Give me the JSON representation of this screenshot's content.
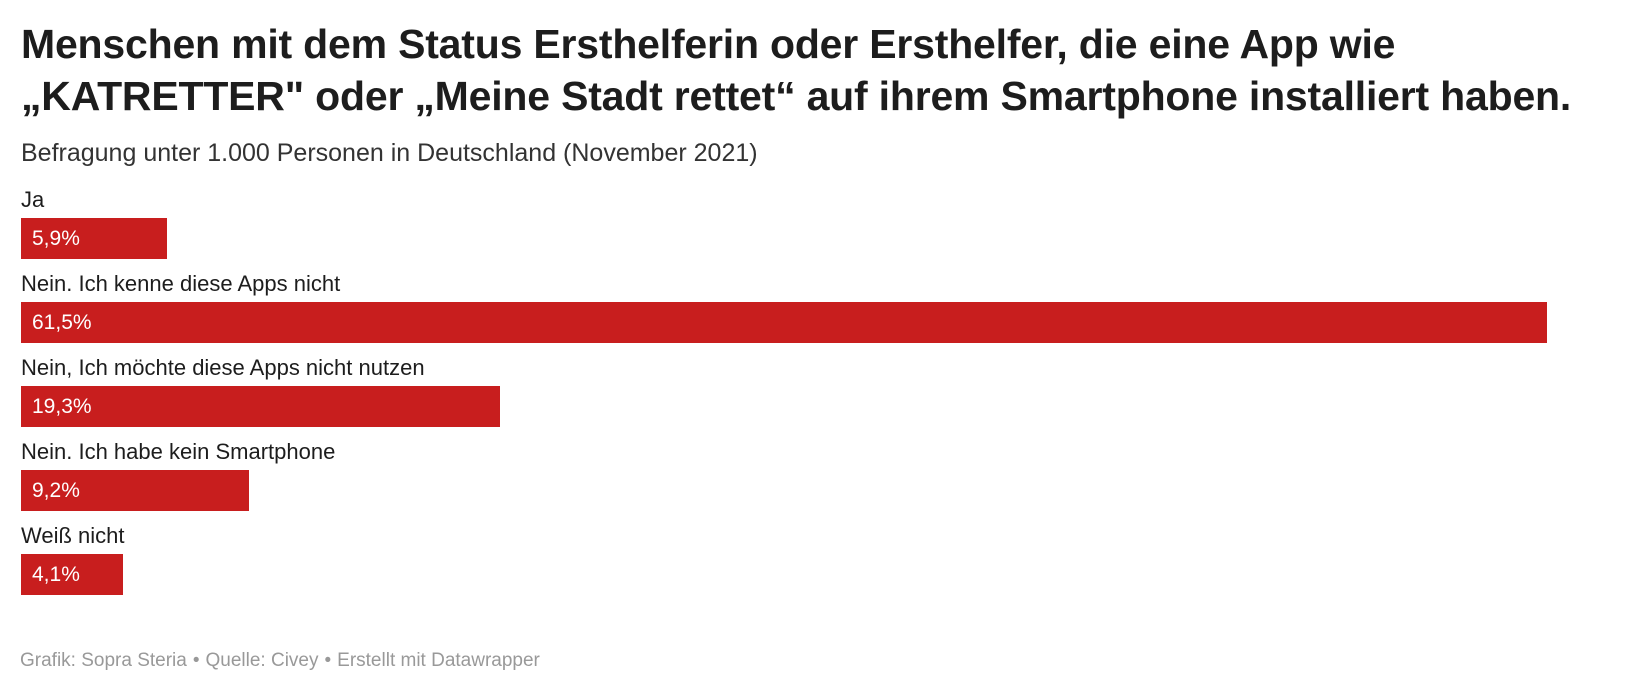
{
  "chart_data": {
    "type": "bar",
    "orientation": "horizontal",
    "title_line1": "Menschen mit dem Status Ersthelferin oder Ersthelfer, die eine App wie",
    "title_line2": "„KATRETTER\" oder „Meine Stadt rettet“ auf ihrem Smartphone installiert haben.",
    "subtitle": "Befragung unter 1.000 Personen in Deutschland (November 2021)",
    "categories": [
      "Ja",
      "Nein. Ich kenne diese Apps nicht",
      "Nein, Ich möchte diese Apps nicht nutzen",
      "Nein. Ich habe kein Smartphone",
      "Weiß nicht"
    ],
    "values": [
      5.9,
      61.5,
      19.3,
      9.2,
      4.1
    ],
    "value_labels": [
      "5,9%",
      "61,5%",
      "19,3%",
      "9,2%",
      "4,1%"
    ],
    "unit": "%",
    "xlim": [
      0,
      61.5
    ],
    "grid": false,
    "bar_color": "#c81e1e"
  },
  "footer": {
    "credit": "Grafik: Sopra Steria",
    "source": "Quelle: Civey",
    "tool": "Erstellt mit Datawrapper",
    "separator": "•"
  }
}
